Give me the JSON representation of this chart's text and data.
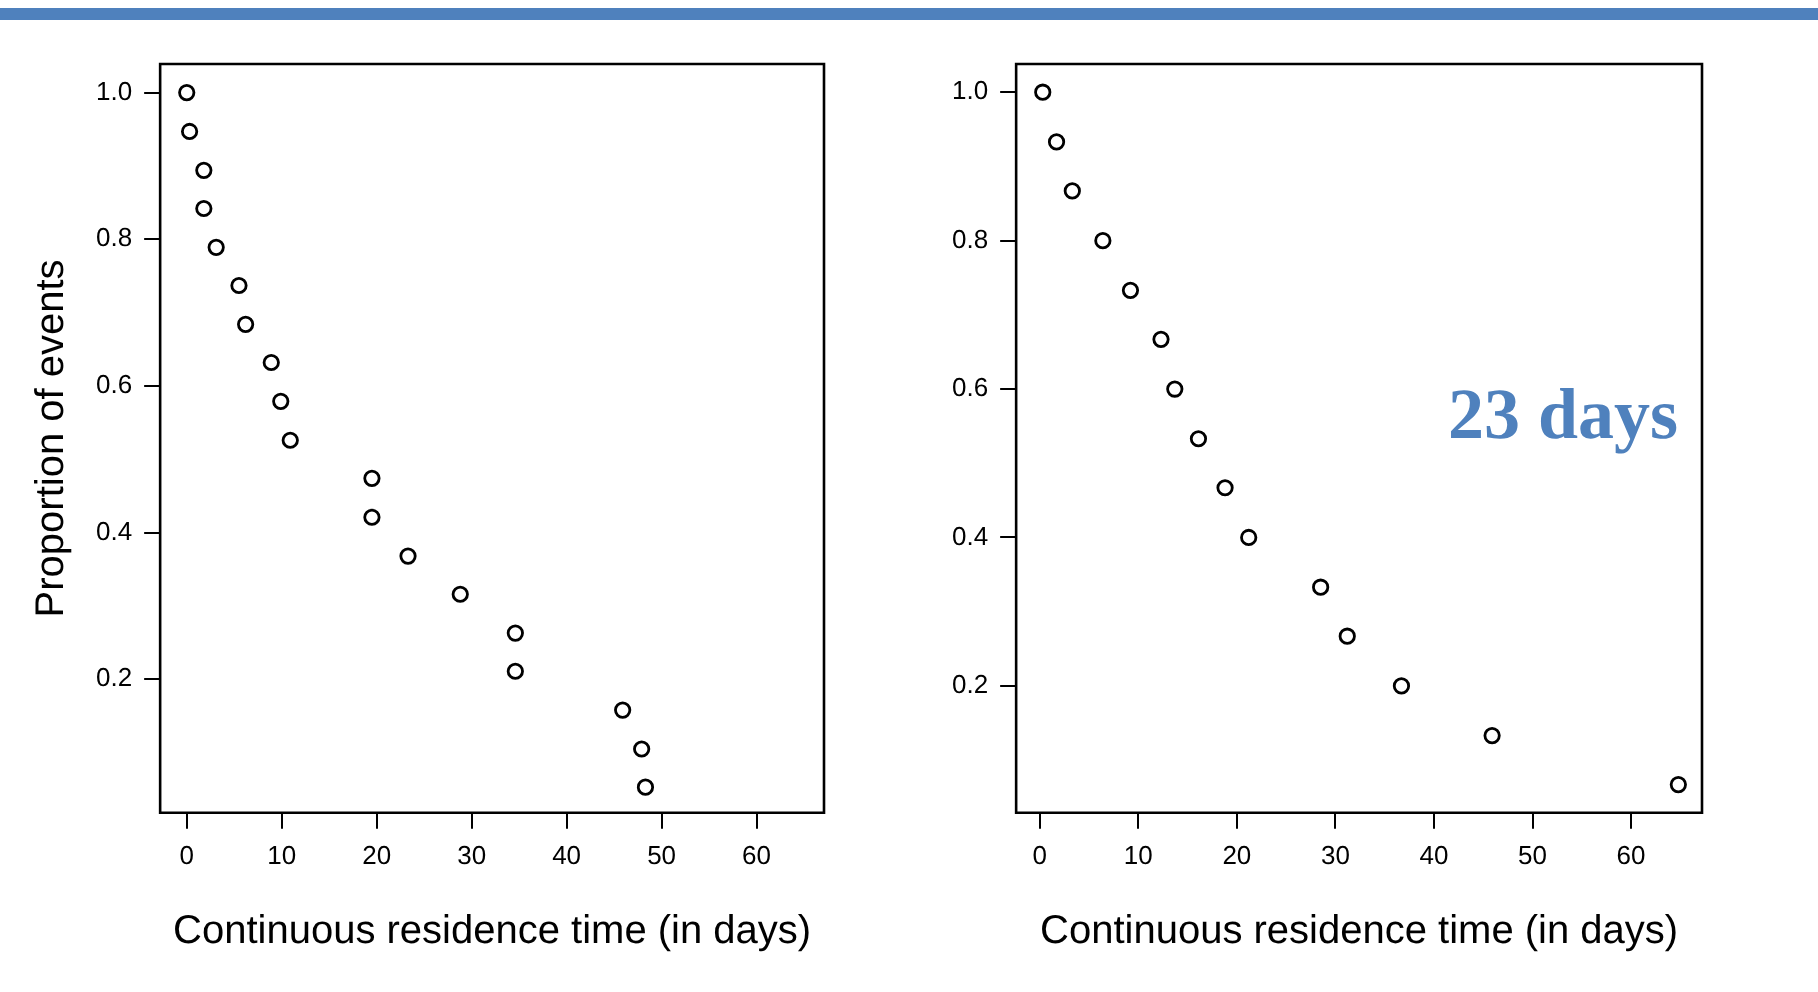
{
  "chart_data": [
    {
      "type": "scatter",
      "xlabel": "Continuous residence time (in days)",
      "ylabel": "Proportion of events",
      "marker": "circle",
      "grid": false,
      "legend": false,
      "xlim": [
        -2.8,
        67.1
      ],
      "ylim": [
        0.018,
        1.039
      ],
      "xticks": [
        0,
        10,
        20,
        30,
        40,
        50,
        60
      ],
      "yticks": [
        0.2,
        0.4,
        0.6,
        0.8,
        {
          "value": 1,
          "label": "1.0"
        }
      ],
      "series": [
        {
          "color": "#000000",
          "x": [
            0,
            0.3,
            1.8,
            1.8,
            3.1,
            5.5,
            6.2,
            8.9,
            9.9,
            10.9,
            19.5,
            19.5,
            23.3,
            28.8,
            34.6,
            34.6,
            45.9,
            47.9,
            48.3
          ],
          "values": [
            1.0,
            0.947,
            0.894,
            0.842,
            0.789,
            0.737,
            0.684,
            0.632,
            0.579,
            0.526,
            0.474,
            0.421,
            0.368,
            0.316,
            0.263,
            0.211,
            0.158,
            0.105,
            0.053
          ]
        }
      ]
    },
    {
      "type": "scatter",
      "xlabel": "Continuous residence time (in days)",
      "marker": "circle",
      "grid": false,
      "legend": false,
      "annotations": [
        "23 days"
      ],
      "xlim": [
        -2.4,
        67.2
      ],
      "ylim": [
        0.029,
        1.038
      ],
      "xticks": [
        0,
        10,
        20,
        30,
        40,
        50,
        60
      ],
      "yticks": [
        0.2,
        0.4,
        0.6,
        0.8,
        {
          "value": 1,
          "label": "1.0"
        }
      ],
      "series": [
        {
          "color": "#000000",
          "x": [
            0.3,
            1.7,
            3.3,
            6.4,
            9.2,
            12.3,
            13.7,
            16.1,
            18.8,
            21.2,
            28.5,
            31.2,
            36.7,
            45.9,
            64.8
          ],
          "values": [
            1.0,
            0.933,
            0.867,
            0.8,
            0.733,
            0.667,
            0.6,
            0.533,
            0.467,
            0.4,
            0.333,
            0.267,
            0.2,
            0.133,
            0.067
          ]
        }
      ]
    }
  ]
}
